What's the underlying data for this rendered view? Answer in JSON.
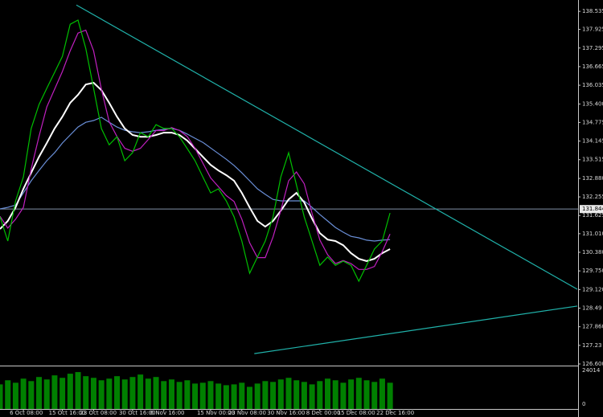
{
  "chart_data": {
    "type": "line",
    "categories": [
      null,
      null,
      null,
      "6 Oct 08:00",
      null,
      null,
      null,
      null,
      "15 Oct 16:00",
      null,
      null,
      null,
      "23 Oct 08:00",
      null,
      null,
      null,
      null,
      "30 Oct 16:00",
      null,
      null,
      null,
      "6 Nov 16:00",
      null,
      null,
      null,
      null,
      null,
      "15 Nov 00:00",
      null,
      null,
      null,
      "23 Nov 08:00",
      null,
      null,
      null,
      null,
      "30 Nov 16:00",
      null,
      null,
      null,
      null,
      "8 Dec 00:00",
      null,
      null,
      null,
      "15 Dec 08:00",
      null,
      null,
      null,
      null,
      "22 Dec 16:00"
    ],
    "xlim": [
      0,
      74
    ],
    "ylim": [
      126.6,
      138.92
    ],
    "yticks": [
      {
        "value": 126.6,
        "label": "126.600"
      },
      127.23,
      {
        "value": 127.86,
        "label": "127.860"
      },
      128.49,
      {
        "value": 129.12,
        "label": "129.120"
      },
      {
        "value": 129.75,
        "label": "129.750"
      },
      {
        "value": 130.38,
        "label": "130.380"
      },
      {
        "value": 131.01,
        "label": "131.010"
      },
      131.625,
      132.255,
      {
        "value": 132.88,
        "label": "132.880"
      },
      133.515,
      134.145,
      134.775,
      {
        "value": 135.4,
        "label": "135.400"
      },
      136.035,
      136.665,
      137.295,
      137.925,
      138.535
    ],
    "current_price": 131.844,
    "series": [
      {
        "color": "#00c000",
        "values": [
          131.58,
          130.76,
          132.12,
          132.93,
          134.57,
          135.38,
          135.93,
          136.47,
          137.01,
          138.1,
          138.24,
          137.28,
          135.93,
          134.57,
          134.02,
          134.29,
          133.48,
          133.75,
          134.43,
          134.29,
          134.7,
          134.57,
          134.57,
          134.29,
          133.89,
          133.48,
          132.93,
          132.39,
          132.53,
          132.12,
          131.58,
          130.76,
          129.67,
          130.22,
          130.76,
          131.58,
          132.93,
          133.75,
          132.66,
          131.58,
          130.76,
          129.94,
          130.22,
          129.94,
          130.08,
          129.94,
          129.4,
          129.94,
          130.49,
          130.76,
          131.71
        ]
      },
      {
        "color": "#c020c0",
        "values": [
          131.6,
          131.2,
          131.5,
          131.9,
          133.2,
          134.3,
          135.3,
          135.9,
          136.5,
          137.2,
          137.8,
          137.9,
          137.2,
          135.9,
          134.8,
          134.3,
          133.9,
          133.8,
          133.9,
          134.2,
          134.5,
          134.5,
          134.6,
          134.5,
          134.3,
          133.9,
          133.4,
          132.9,
          132.6,
          132.3,
          132.1,
          131.5,
          130.7,
          130.2,
          130.2,
          130.9,
          131.8,
          132.8,
          133.1,
          132.7,
          131.7,
          130.8,
          130.3,
          130.0,
          130.1,
          130.0,
          129.8,
          129.8,
          129.9,
          130.4,
          131.0
        ]
      },
      {
        "color": "#ffffff",
        "values": [
          131.17,
          131.44,
          131.9,
          132.53,
          133.07,
          133.61,
          134.08,
          134.57,
          134.97,
          135.44,
          135.71,
          136.06,
          136.12,
          135.87,
          135.44,
          134.97,
          134.57,
          134.35,
          134.29,
          134.29,
          134.35,
          134.43,
          134.43,
          134.35,
          134.16,
          133.89,
          133.61,
          133.34,
          133.15,
          132.99,
          132.8,
          132.39,
          131.9,
          131.44,
          131.25,
          131.44,
          131.79,
          132.17,
          132.39,
          132.07,
          131.52,
          131.03,
          130.81,
          130.76,
          130.62,
          130.35,
          130.16,
          130.08,
          130.16,
          130.35,
          130.49
        ]
      },
      {
        "color": "#6a8fd8",
        "values": [
          131.85,
          131.9,
          131.98,
          132.39,
          132.8,
          133.15,
          133.48,
          133.75,
          134.08,
          134.35,
          134.62,
          134.78,
          134.84,
          134.95,
          134.78,
          134.62,
          134.51,
          134.46,
          134.43,
          134.46,
          134.51,
          134.54,
          134.57,
          134.51,
          134.38,
          134.24,
          134.1,
          133.91,
          133.72,
          133.53,
          133.32,
          133.07,
          132.8,
          132.53,
          132.34,
          132.17,
          132.12,
          132.12,
          132.12,
          132.12,
          131.9,
          131.66,
          131.44,
          131.22,
          131.06,
          130.92,
          130.87,
          130.79,
          130.76,
          130.79,
          130.81
        ]
      }
    ],
    "trendlines": [
      {
        "color": "#20b2aa",
        "points": [
          [
            9.79,
            138.75
          ],
          [
            74,
            129.13
          ]
        ]
      },
      {
        "color": "#20b2aa",
        "points": [
          [
            32.6,
            126.95
          ],
          [
            74,
            128.56
          ]
        ]
      }
    ],
    "volume": {
      "color": "#008000",
      "ylim": [
        0,
        24014
      ],
      "yticks": [
        0,
        24014
      ],
      "values": [
        15000,
        17500,
        16000,
        18500,
        17000,
        19500,
        18000,
        20500,
        19000,
        21500,
        22500,
        20000,
        19000,
        17500,
        18500,
        20000,
        18000,
        19500,
        21000,
        18500,
        19500,
        17000,
        18000,
        16500,
        17500,
        15500,
        16000,
        17000,
        15500,
        14500,
        15000,
        16000,
        13500,
        15500,
        17000,
        16500,
        18000,
        19000,
        17500,
        16500,
        15000,
        17000,
        18500,
        17500,
        16000,
        18000,
        19000,
        17500,
        16500,
        18500,
        16000
      ]
    }
  }
}
